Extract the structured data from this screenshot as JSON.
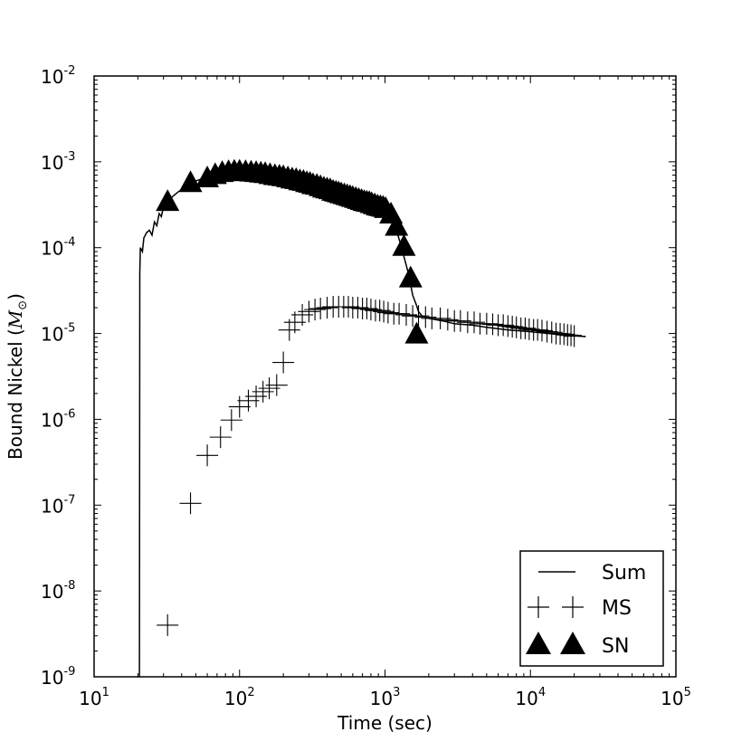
{
  "chart_data": {
    "type": "scatter",
    "xlabel": "Time (sec)",
    "ylabel": "Bound Nickel (",
    "ylabel_unit": "M",
    "ylabel_sub": "⊙",
    "ylabel_close": ")",
    "x_scale": "log",
    "y_scale": "log",
    "xlim": [
      10,
      100000
    ],
    "ylim": [
      1e-09,
      0.01
    ],
    "grid": false,
    "legend_position": "bottom-right",
    "x_ticks": [
      {
        "base": "10",
        "exp": "1"
      },
      {
        "base": "10",
        "exp": "2"
      },
      {
        "base": "10",
        "exp": "3"
      },
      {
        "base": "10",
        "exp": "4"
      },
      {
        "base": "10",
        "exp": "5"
      }
    ],
    "y_ticks": [
      {
        "base": "10",
        "exp": "-9"
      },
      {
        "base": "10",
        "exp": "-8"
      },
      {
        "base": "10",
        "exp": "-7"
      },
      {
        "base": "10",
        "exp": "-6"
      },
      {
        "base": "10",
        "exp": "-5"
      },
      {
        "base": "10",
        "exp": "-4"
      },
      {
        "base": "10",
        "exp": "-3"
      },
      {
        "base": "10",
        "exp": "-2"
      }
    ],
    "series": [
      {
        "name": "Sum",
        "marker": "line",
        "color": "#000000",
        "x": [
          20.5,
          20.6,
          20.8,
          21.5,
          22,
          23,
          24,
          25,
          26,
          27,
          28,
          29,
          30,
          32,
          35,
          38,
          42,
          46,
          50,
          55,
          60,
          70,
          80,
          100,
          130,
          170,
          220,
          280,
          350,
          420,
          500,
          600,
          700,
          800,
          900,
          1000,
          1100,
          1200,
          1300,
          1450,
          1550,
          1650,
          1700,
          1800,
          2000,
          2500,
          3000,
          4000,
          5000,
          7000,
          10000,
          15000,
          20000,
          24000
        ],
        "y": [
          1e-09,
          5e-05,
          0.0001,
          9e-05,
          0.00013,
          0.00015,
          0.00016,
          0.00014,
          0.0002,
          0.00018,
          0.00025,
          0.00023,
          0.0003,
          0.00035,
          0.0004,
          0.00045,
          0.0005,
          0.00055,
          0.0006,
          0.00063,
          0.00065,
          0.00066,
          0.00067,
          0.00066,
          0.00063,
          0.00059,
          0.00054,
          0.00049,
          0.00045,
          0.00042,
          0.00039,
          0.00036,
          0.00034,
          0.00032,
          0.000305,
          0.00029,
          0.00023,
          0.00016,
          0.0001,
          5e-05,
          2.8e-05,
          2.1e-05,
          1.8e-05,
          1.6e-05,
          1.5e-05,
          1.4e-05,
          1.3e-05,
          1.25e-05,
          1.18e-05,
          1.1e-05,
          1.05e-05,
          9.8e-06,
          9.4e-06,
          9.2e-06
        ]
      },
      {
        "name": "MS",
        "marker": "plus",
        "color": "#000000",
        "x": [
          32,
          46,
          60,
          74,
          88,
          100,
          115,
          130,
          145,
          160,
          180,
          200,
          220,
          240,
          270,
          300,
          330,
          360,
          400,
          440,
          480,
          520,
          560,
          600,
          650,
          700,
          750,
          800,
          860,
          920,
          980,
          1050,
          1150,
          1250,
          1400,
          1550,
          1700,
          1900,
          2100,
          2400,
          2700,
          3000,
          3300,
          3700,
          4100,
          4500,
          5000,
          5500,
          6000,
          6500,
          7000,
          7500,
          8000,
          8600,
          9200,
          9800,
          10500,
          11200,
          12000,
          13000,
          14000,
          15000,
          16000,
          17000,
          18000,
          19000,
          20000
        ],
        "y": [
          4e-09,
          1.05e-07,
          3.8e-07,
          6.2e-07,
          9.8e-07,
          1.4e-06,
          1.65e-06,
          1.85e-06,
          2.1e-06,
          2.3e-06,
          2.5e-06,
          4.6e-06,
          1.1e-05,
          1.35e-05,
          1.65e-05,
          1.8e-05,
          1.9e-05,
          1.95e-05,
          2e-05,
          2.05e-05,
          2.05e-05,
          2.05e-05,
          2.05e-05,
          2e-05,
          2e-05,
          1.95e-05,
          1.95e-05,
          1.9e-05,
          1.85e-05,
          1.85e-05,
          1.8e-05,
          1.75e-05,
          1.7e-05,
          1.7e-05,
          1.65e-05,
          1.6e-05,
          1.6e-05,
          1.55e-05,
          1.5e-05,
          1.5e-05,
          1.45e-05,
          1.4e-05,
          1.4e-05,
          1.35e-05,
          1.35e-05,
          1.3e-05,
          1.3e-05,
          1.28e-05,
          1.25e-05,
          1.25e-05,
          1.22e-05,
          1.2e-05,
          1.18e-05,
          1.15e-05,
          1.15e-05,
          1.12e-05,
          1.1e-05,
          1.1e-05,
          1.08e-05,
          1.05e-05,
          1.03e-05,
          1e-05,
          9.9e-06,
          9.8e-06,
          9.6e-06,
          9.5e-06,
          9.3e-06
        ]
      },
      {
        "name": "SN",
        "marker": "triangle",
        "color": "#000000",
        "x": [
          32,
          46,
          60,
          68,
          76,
          84,
          92,
          100,
          110,
          120,
          130,
          140,
          150,
          162,
          175,
          188,
          200,
          215,
          230,
          245,
          260,
          275,
          290,
          305,
          320,
          340,
          360,
          380,
          400,
          420,
          440,
          460,
          480,
          500,
          525,
          550,
          575,
          600,
          630,
          660,
          690,
          720,
          750,
          780,
          810,
          850,
          890,
          930,
          970,
          1010,
          1100,
          1200,
          1350,
          1500,
          1650
        ],
        "y": [
          0.00035,
          0.00058,
          0.00066,
          0.00072,
          0.00076,
          0.00078,
          0.00079,
          0.00079,
          0.00078,
          0.00077,
          0.00076,
          0.00075,
          0.00074,
          0.00072,
          0.0007,
          0.00069,
          0.00068,
          0.00066,
          0.00064,
          0.00063,
          0.00061,
          0.0006,
          0.00058,
          0.00057,
          0.00055,
          0.00054,
          0.00052,
          0.0005,
          0.00049,
          0.00048,
          0.00046,
          0.00045,
          0.00044,
          0.00043,
          0.00042,
          0.00041,
          0.0004,
          0.00039,
          0.00038,
          0.00037,
          0.00036,
          0.00035,
          0.000345,
          0.00034,
          0.00033,
          0.00032,
          0.00031,
          0.000305,
          0.0003,
          0.00029,
          0.00025,
          0.00018,
          0.000105,
          4.5e-05,
          1e-05
        ]
      }
    ]
  }
}
